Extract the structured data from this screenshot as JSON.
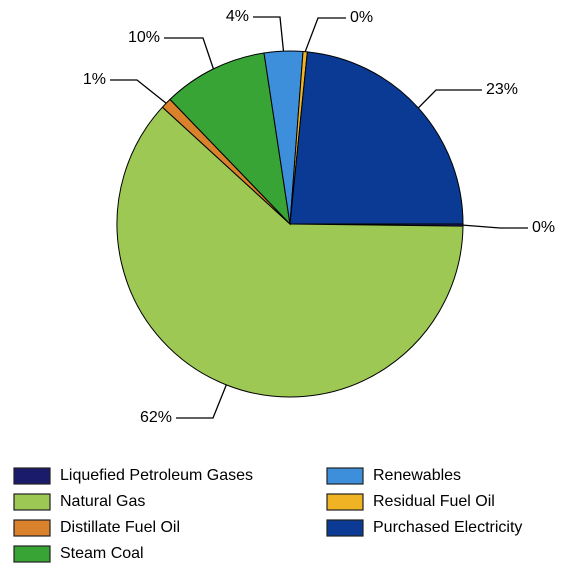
{
  "chart_data": {
    "type": "pie",
    "categories": [
      "Liquefied Petroleum Gases",
      "Natural Gas",
      "Distillate Fuel Oil",
      "Steam Coal",
      "Renewables",
      "Residual Fuel Oil",
      "Purchased Electricity"
    ],
    "values": [
      0.2,
      61.6,
      1.0,
      9.8,
      3.6,
      0.4,
      23.4
    ],
    "value_labels": [
      "0%",
      "62%",
      "1%",
      "10%",
      "4%",
      "0%",
      "23%"
    ],
    "colors": [
      "#1b1b6b",
      "#9dc853",
      "#d9822b",
      "#37a435",
      "#3d8fdc",
      "#f0b323",
      "#0b3a94"
    ],
    "legend": "bottom"
  }
}
